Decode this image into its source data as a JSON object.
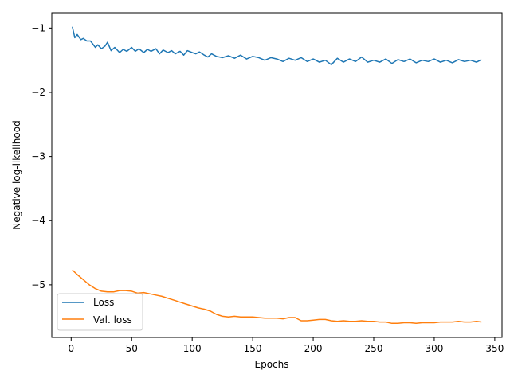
{
  "chart_data": {
    "type": "line",
    "title": "",
    "xlabel": "Epochs",
    "ylabel": "Negative log-likelihood",
    "xlim": [
      -16,
      356
    ],
    "ylim": [
      -5.82,
      -0.76
    ],
    "xticks": [
      0,
      50,
      100,
      150,
      200,
      250,
      300,
      350
    ],
    "yticks": [
      -1,
      -2,
      -3,
      -4,
      -5
    ],
    "ytick_labels": [
      "−1",
      "−2",
      "−3",
      "−4",
      "−5"
    ],
    "grid": false,
    "legend_position": "lower-left",
    "series": [
      {
        "name": "Loss",
        "color": "#1f77b4",
        "x": [
          1,
          3,
          5,
          8,
          10,
          13,
          16,
          20,
          22,
          25,
          28,
          30,
          33,
          36,
          40,
          43,
          46,
          50,
          53,
          56,
          60,
          63,
          66,
          70,
          73,
          76,
          80,
          83,
          86,
          90,
          93,
          96,
          100,
          103,
          106,
          110,
          113,
          116,
          120,
          125,
          130,
          135,
          140,
          145,
          150,
          155,
          160,
          165,
          170,
          175,
          180,
          185,
          190,
          195,
          200,
          205,
          210,
          215,
          220,
          225,
          230,
          235,
          240,
          245,
          250,
          255,
          260,
          265,
          270,
          275,
          280,
          285,
          290,
          295,
          300,
          305,
          310,
          315,
          320,
          325,
          330,
          335,
          339
        ],
        "y": [
          -0.98,
          -1.15,
          -1.1,
          -1.18,
          -1.16,
          -1.2,
          -1.2,
          -1.3,
          -1.26,
          -1.32,
          -1.28,
          -1.22,
          -1.35,
          -1.3,
          -1.38,
          -1.33,
          -1.36,
          -1.3,
          -1.36,
          -1.32,
          -1.38,
          -1.33,
          -1.36,
          -1.32,
          -1.4,
          -1.34,
          -1.38,
          -1.35,
          -1.4,
          -1.36,
          -1.42,
          -1.35,
          -1.38,
          -1.4,
          -1.37,
          -1.42,
          -1.45,
          -1.4,
          -1.44,
          -1.46,
          -1.43,
          -1.47,
          -1.42,
          -1.48,
          -1.44,
          -1.46,
          -1.5,
          -1.46,
          -1.48,
          -1.52,
          -1.47,
          -1.5,
          -1.46,
          -1.52,
          -1.48,
          -1.53,
          -1.5,
          -1.57,
          -1.47,
          -1.53,
          -1.48,
          -1.52,
          -1.45,
          -1.53,
          -1.5,
          -1.53,
          -1.48,
          -1.55,
          -1.49,
          -1.52,
          -1.48,
          -1.54,
          -1.5,
          -1.52,
          -1.48,
          -1.53,
          -1.5,
          -1.54,
          -1.49,
          -1.52,
          -1.5,
          -1.53,
          -1.49
        ]
      },
      {
        "name": "Val. loss",
        "color": "#ff7f0e",
        "x": [
          1,
          5,
          10,
          15,
          20,
          25,
          30,
          35,
          40,
          45,
          50,
          55,
          60,
          65,
          70,
          75,
          80,
          85,
          90,
          95,
          100,
          105,
          110,
          115,
          120,
          125,
          130,
          135,
          140,
          145,
          150,
          155,
          160,
          165,
          170,
          175,
          180,
          185,
          190,
          195,
          200,
          205,
          210,
          215,
          220,
          225,
          230,
          235,
          240,
          245,
          250,
          255,
          260,
          265,
          270,
          275,
          280,
          285,
          290,
          295,
          300,
          305,
          310,
          315,
          320,
          325,
          330,
          335,
          339
        ],
        "y": [
          -4.77,
          -4.84,
          -4.92,
          -5.0,
          -5.06,
          -5.1,
          -5.11,
          -5.11,
          -5.09,
          -5.09,
          -5.1,
          -5.13,
          -5.12,
          -5.14,
          -5.16,
          -5.18,
          -5.21,
          -5.24,
          -5.27,
          -5.3,
          -5.33,
          -5.36,
          -5.38,
          -5.41,
          -5.46,
          -5.49,
          -5.5,
          -5.49,
          -5.5,
          -5.5,
          -5.5,
          -5.51,
          -5.52,
          -5.52,
          -5.52,
          -5.53,
          -5.51,
          -5.51,
          -5.56,
          -5.56,
          -5.55,
          -5.54,
          -5.54,
          -5.56,
          -5.57,
          -5.56,
          -5.57,
          -5.57,
          -5.56,
          -5.57,
          -5.57,
          -5.58,
          -5.58,
          -5.6,
          -5.6,
          -5.59,
          -5.59,
          -5.6,
          -5.59,
          -5.59,
          -5.59,
          -5.58,
          -5.58,
          -5.58,
          -5.57,
          -5.58,
          -5.58,
          -5.57,
          -5.58
        ]
      }
    ]
  }
}
